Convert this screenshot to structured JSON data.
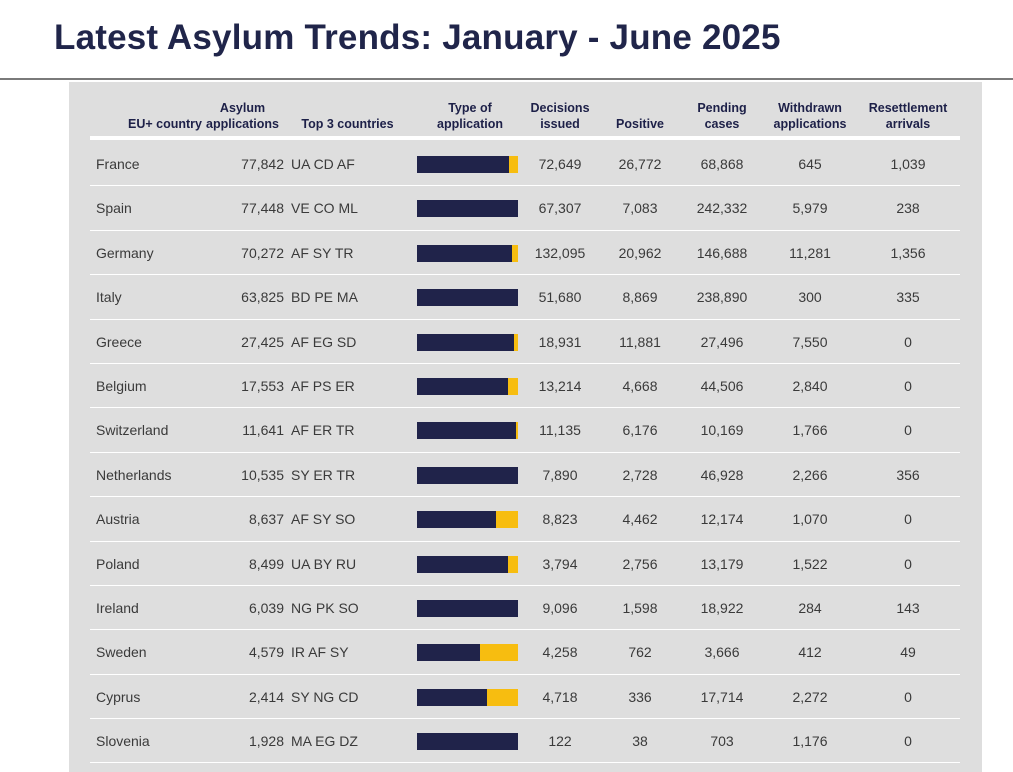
{
  "title": "Latest Asylum Trends: January - June 2025",
  "headers": {
    "country": "EU+ country",
    "apps_line1": "Asylum",
    "apps_line2": "applications",
    "top3": "Top 3 countries",
    "type_line1": "Type of",
    "type_line2": "application",
    "dec_line1": "Decisions",
    "dec_line2": "issued",
    "positive": "Positive",
    "pend_line1": "Pending",
    "pend_line2": "cases",
    "wd_line1": "Withdrawn",
    "wd_line2": "applications",
    "res_line1": "Resettlement",
    "res_line2": "arrivals"
  },
  "colors": {
    "first_time": "#20234a",
    "repeated": "#f7bd10"
  },
  "rows": [
    {
      "country": "France",
      "applications": "77,842",
      "top3": "UA CD AF",
      "first_share": 0.91,
      "decisions": "72,649",
      "positive": "26,772",
      "pending": "68,868",
      "withdrawn": "645",
      "resettlement": "1,039"
    },
    {
      "country": "Spain",
      "applications": "77,448",
      "top3": "VE CO ML",
      "first_share": 1.0,
      "decisions": "67,307",
      "positive": "7,083",
      "pending": "242,332",
      "withdrawn": "5,979",
      "resettlement": "238"
    },
    {
      "country": "Germany",
      "applications": "70,272",
      "top3": "AF SY TR",
      "first_share": 0.94,
      "decisions": "132,095",
      "positive": "20,962",
      "pending": "146,688",
      "withdrawn": "11,281",
      "resettlement": "1,356"
    },
    {
      "country": "Italy",
      "applications": "63,825",
      "top3": "BD PE MA",
      "first_share": 1.0,
      "decisions": "51,680",
      "positive": "8,869",
      "pending": "238,890",
      "withdrawn": "300",
      "resettlement": "335"
    },
    {
      "country": "Greece",
      "applications": "27,425",
      "top3": "AF EG SD",
      "first_share": 0.96,
      "decisions": "18,931",
      "positive": "11,881",
      "pending": "27,496",
      "withdrawn": "7,550",
      "resettlement": "0"
    },
    {
      "country": "Belgium",
      "applications": "17,553",
      "top3": "AF PS ER",
      "first_share": 0.9,
      "decisions": "13,214",
      "positive": "4,668",
      "pending": "44,506",
      "withdrawn": "2,840",
      "resettlement": "0"
    },
    {
      "country": "Switzerland",
      "applications": "11,641",
      "top3": "AF ER TR",
      "first_share": 0.98,
      "decisions": "11,135",
      "positive": "6,176",
      "pending": "10,169",
      "withdrawn": "1,766",
      "resettlement": "0"
    },
    {
      "country": "Netherlands",
      "applications": "10,535",
      "top3": "SY ER TR",
      "first_share": 1.0,
      "decisions": "7,890",
      "positive": "2,728",
      "pending": "46,928",
      "withdrawn": "2,266",
      "resettlement": "356"
    },
    {
      "country": "Austria",
      "applications": "8,637",
      "top3": "AF SY SO",
      "first_share": 0.78,
      "decisions": "8,823",
      "positive": "4,462",
      "pending": "12,174",
      "withdrawn": "1,070",
      "resettlement": "0"
    },
    {
      "country": "Poland",
      "applications": "8,499",
      "top3": "UA BY RU",
      "first_share": 0.9,
      "decisions": "3,794",
      "positive": "2,756",
      "pending": "13,179",
      "withdrawn": "1,522",
      "resettlement": "0"
    },
    {
      "country": "Ireland",
      "applications": "6,039",
      "top3": "NG PK SO",
      "first_share": 1.0,
      "decisions": "9,096",
      "positive": "1,598",
      "pending": "18,922",
      "withdrawn": "284",
      "resettlement": "143"
    },
    {
      "country": "Sweden",
      "applications": "4,579",
      "top3": "IR AF SY",
      "first_share": 0.62,
      "decisions": "4,258",
      "positive": "762",
      "pending": "3,666",
      "withdrawn": "412",
      "resettlement": "49"
    },
    {
      "country": "Cyprus",
      "applications": "2,414",
      "top3": "SY NG CD",
      "first_share": 0.69,
      "decisions": "4,718",
      "positive": "336",
      "pending": "17,714",
      "withdrawn": "2,272",
      "resettlement": "0"
    },
    {
      "country": "Slovenia",
      "applications": "1,928",
      "top3": "MA EG DZ",
      "first_share": 1.0,
      "decisions": "122",
      "positive": "38",
      "pending": "703",
      "withdrawn": "1,176",
      "resettlement": "0"
    }
  ]
}
